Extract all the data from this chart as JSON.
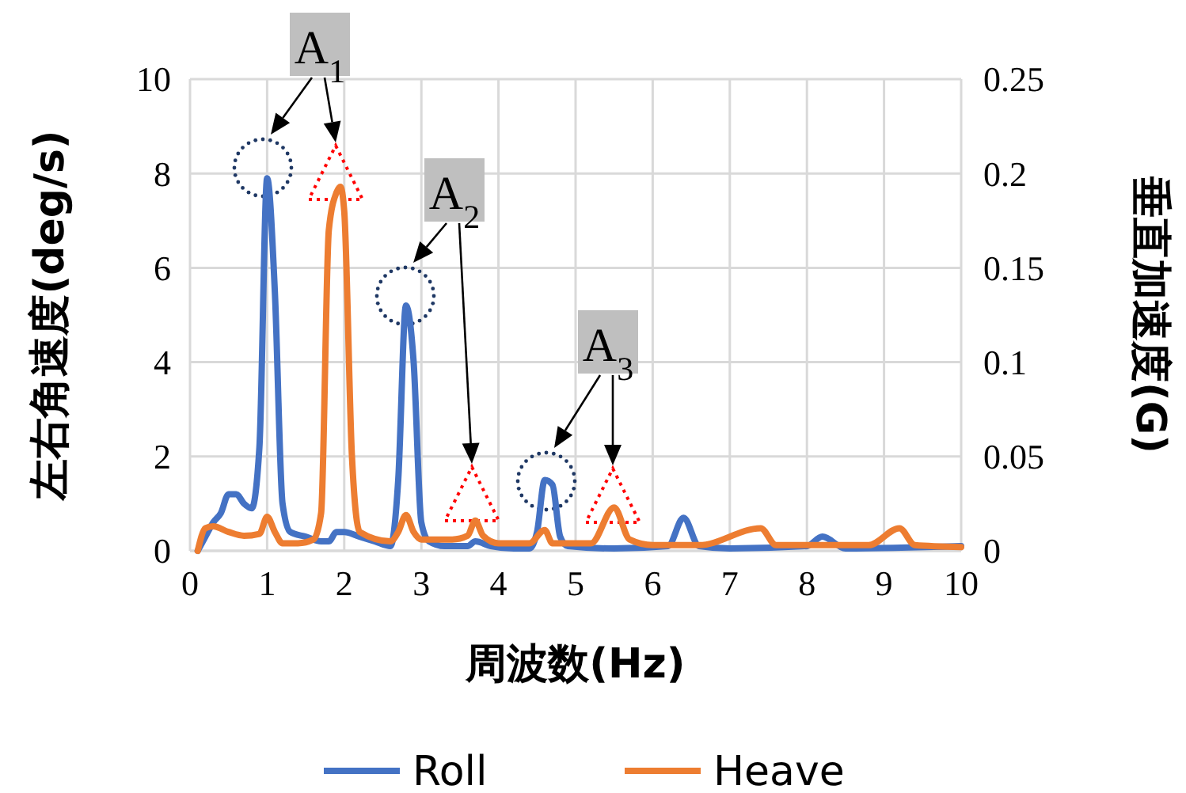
{
  "chart_data": {
    "type": "line",
    "xlabel": "周波数(Hz)",
    "ylabel": "左右角速度(deg/s)",
    "y2label": "垂直加速度(G)",
    "xlim": [
      0,
      10
    ],
    "xticks": [
      0,
      1,
      2,
      3,
      4,
      5,
      6,
      7,
      8,
      9,
      10
    ],
    "ylim": [
      0,
      10
    ],
    "yticks": [
      0,
      2,
      4,
      6,
      8,
      10
    ],
    "y2lim": [
      0,
      0.25
    ],
    "y2ticks": [
      0,
      0.05,
      0.1,
      0.15,
      0.2,
      0.25
    ],
    "grid": true,
    "legend": "bottom",
    "marker": "none",
    "line_style": "solid",
    "annotations": [
      "A$_{1}$",
      "A$_{2}$",
      "A$_{3}$"
    ],
    "series": [
      {
        "name": "Roll",
        "color": "#4472c4",
        "x": [
          0.1,
          0.2,
          0.3,
          0.4,
          0.5,
          0.6,
          0.7,
          0.8,
          0.9,
          1.0,
          1.1,
          1.2,
          1.3,
          1.5,
          1.7,
          1.8,
          1.9,
          2.0,
          2.2,
          2.4,
          2.6,
          2.7,
          2.8,
          2.9,
          3.0,
          3.1,
          3.3,
          3.6,
          3.7,
          3.9,
          4.2,
          4.4,
          4.5,
          4.6,
          4.7,
          4.8,
          4.9,
          5.5,
          6.2,
          6.4,
          6.6,
          7.0,
          8.0,
          8.2,
          8.5,
          10
        ],
        "values": [
          0,
          0.3,
          0.6,
          0.8,
          1.2,
          1.2,
          1.0,
          0.9,
          2.2,
          7.9,
          5.5,
          1.0,
          0.4,
          0.3,
          0.2,
          0.2,
          0.4,
          0.4,
          0.3,
          0.2,
          0.1,
          1.5,
          5.2,
          4.0,
          0.6,
          0.2,
          0.1,
          0.1,
          0.2,
          0.1,
          0.05,
          0.05,
          0.4,
          1.5,
          1.4,
          0.3,
          0.1,
          0.05,
          0.1,
          0.7,
          0.1,
          0.05,
          0.1,
          0.3,
          0.05,
          0.1
        ]
      },
      {
        "name": "Heave",
        "color": "#ed7d31",
        "axis": "y2",
        "x": [
          0.1,
          0.2,
          0.3,
          0.5,
          0.7,
          0.9,
          1.0,
          1.1,
          1.2,
          1.4,
          1.6,
          1.7,
          1.8,
          1.9,
          1.95,
          2.0,
          2.1,
          2.2,
          2.6,
          2.7,
          2.8,
          2.9,
          3.0,
          3.4,
          3.6,
          3.7,
          3.8,
          4.0,
          4.4,
          4.6,
          4.7,
          5.2,
          5.5,
          5.7,
          6.0,
          6.6,
          7.4,
          7.6,
          8.8,
          9.2,
          9.4,
          10
        ],
        "values": [
          0,
          0.012,
          0.013,
          0.01,
          0.008,
          0.009,
          0.018,
          0.01,
          0.004,
          0.004,
          0.006,
          0.02,
          0.17,
          0.19,
          0.193,
          0.18,
          0.05,
          0.01,
          0.005,
          0.01,
          0.019,
          0.01,
          0.006,
          0.006,
          0.008,
          0.016,
          0.008,
          0.004,
          0.004,
          0.011,
          0.004,
          0.004,
          0.023,
          0.006,
          0.003,
          0.003,
          0.012,
          0.003,
          0.003,
          0.012,
          0.003,
          0.002
        ]
      }
    ]
  }
}
